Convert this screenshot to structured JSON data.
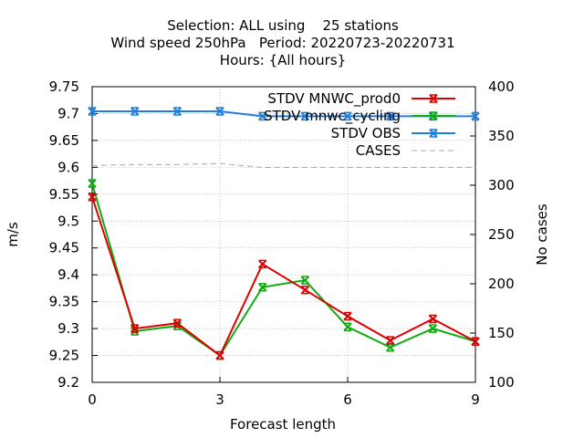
{
  "chart_data": {
    "type": "line",
    "title_lines": [
      "Selection: ALL using    25 stations",
      "Wind speed 250hPa   Period: 20220723-20220731",
      "Hours: {All hours}"
    ],
    "xlabel": "Forecast length",
    "ylabel": "m/s",
    "y2label": "No cases",
    "x": [
      0,
      1,
      2,
      3,
      4,
      5,
      6,
      7,
      8,
      9
    ],
    "xlim": [
      0,
      9
    ],
    "xticks": [
      "0",
      "3",
      "6",
      "9"
    ],
    "ylim": [
      9.2,
      9.75
    ],
    "yticks": [
      "9.2",
      "9.25",
      "9.3",
      "9.35",
      "9.4",
      "9.45",
      "9.5",
      "9.55",
      "9.6",
      "9.65",
      "9.7",
      "9.75"
    ],
    "y2lim": [
      100,
      400
    ],
    "y2ticks": [
      "100",
      "150",
      "200",
      "250",
      "300",
      "350",
      "400"
    ],
    "grid": true,
    "legend_position": "top-right",
    "series": [
      {
        "name": "STDV MNWC_prod0",
        "color": "#dd0000",
        "axis": "y",
        "values": [
          9.545,
          9.3,
          9.31,
          9.25,
          9.42,
          9.372,
          9.323,
          9.278,
          9.318,
          9.276
        ]
      },
      {
        "name": "STDV mnwc_cycling",
        "color": "#11aa11",
        "axis": "y",
        "values": [
          9.57,
          9.295,
          9.305,
          9.25,
          9.377,
          9.39,
          9.303,
          9.265,
          9.3,
          9.276
        ]
      },
      {
        "name": "STDV OBS",
        "color": "#1e7fe0",
        "axis": "y2",
        "values": [
          375,
          375,
          375,
          375,
          370,
          370,
          370,
          370,
          370,
          370
        ]
      },
      {
        "name": "CASES",
        "color": "#aaaaaa",
        "axis": "y2",
        "dashed": true,
        "values": [
          320,
          321,
          321,
          322,
          318,
          318,
          318,
          318,
          318,
          318
        ]
      }
    ]
  }
}
